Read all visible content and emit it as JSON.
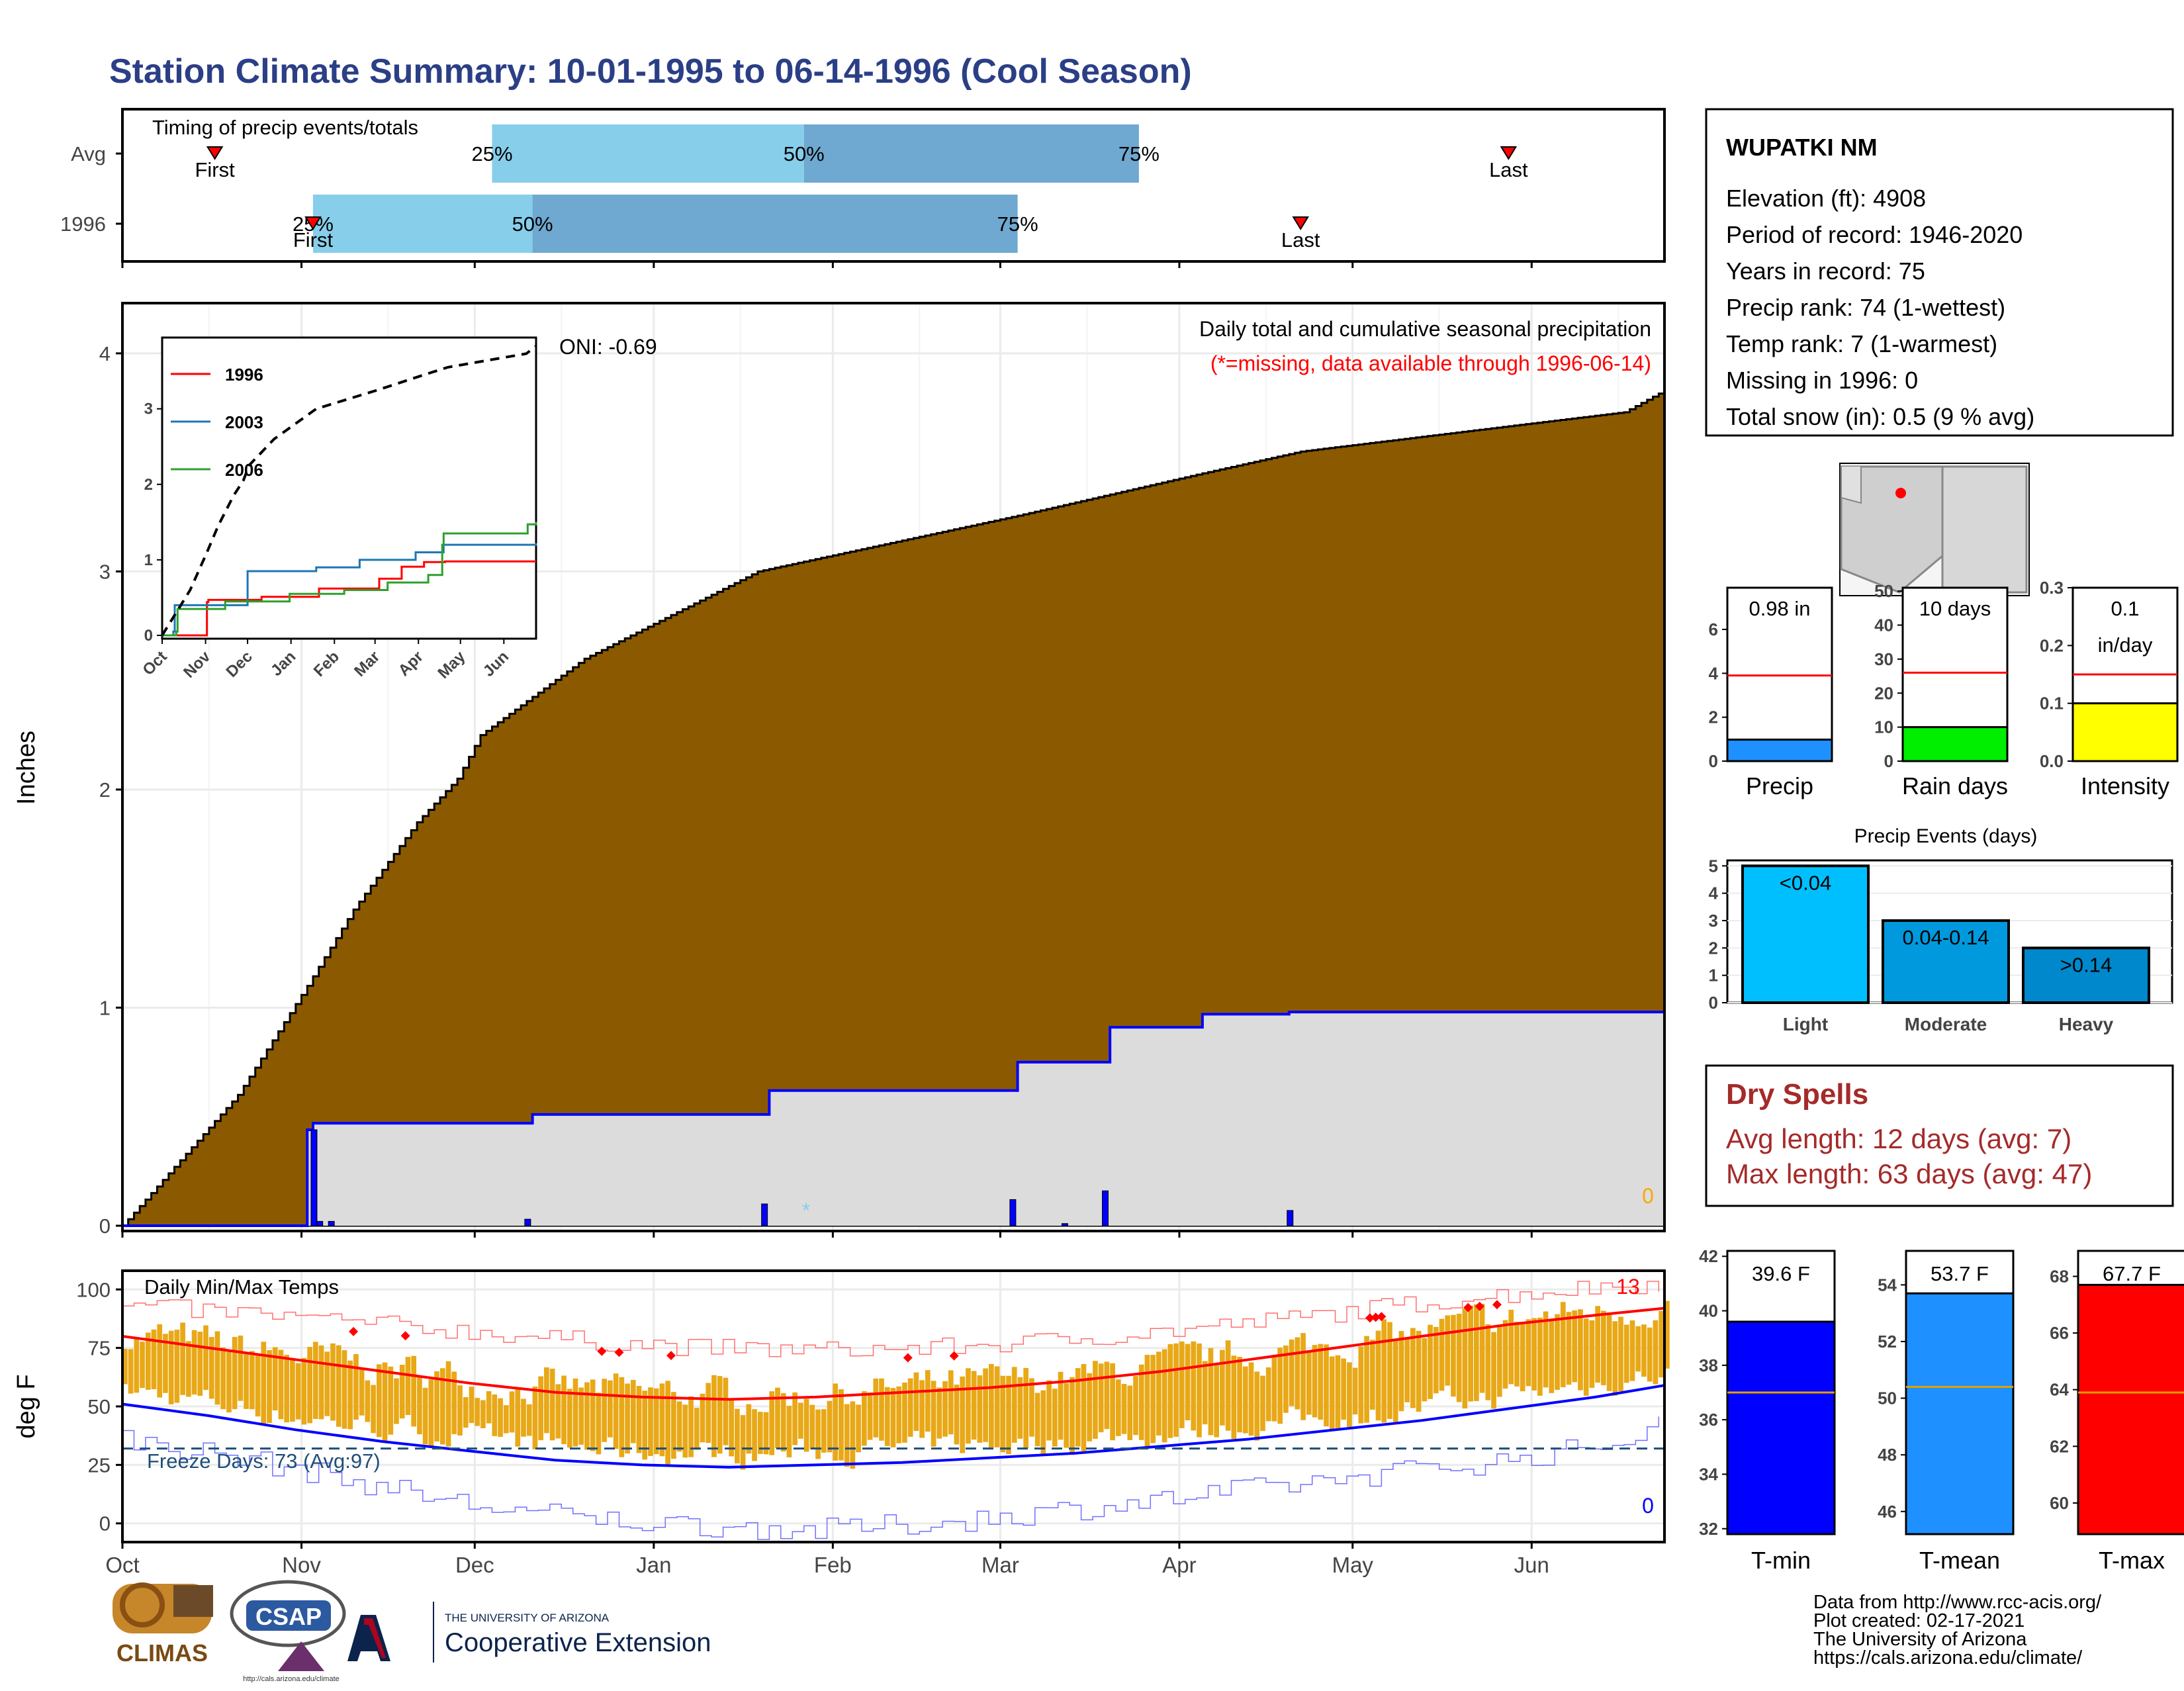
{
  "page": {
    "title": "Station Climate Summary: 10-01-1995 to 06-14-1996 (Cool Season)",
    "footer": [
      "Data from http://www.rcc-acis.org/",
      "Plot created: 02-17-2021",
      "The University of Arizona",
      "https://cals.arizona.edu/climate/"
    ],
    "logos": {
      "climas": "CLIMAS",
      "csap": "CSAP",
      "csap_url": "http://cals.arizona.edu/climate",
      "ua_line1": "THE UNIVERSITY OF ARIZONA",
      "ua_line2": "Cooperative Extension"
    },
    "colors": {
      "title": "#2b3f86",
      "precip_fill": "#8b5a00",
      "normal_fill": "#dcdcdc",
      "normal_line": "#0000ff",
      "bars": "#e8a817",
      "tmax_line": "#ff0000",
      "tmin_line": "#0000ff",
      "freeze": "#1f4e79",
      "dry": "#a52a2a"
    }
  },
  "station": {
    "name": "WUPATKI NM",
    "lines": [
      "Elevation (ft): 4908",
      "Period of record: 1946-2020",
      "Years in record: 75",
      "Precip rank: 74 (1-wettest)",
      "Temp rank: 7 (1-warmest)",
      "Missing in 1996: 0",
      "Total snow (in): 0.5 (9 % avg)"
    ]
  },
  "dry_spells": {
    "title": "Dry Spells",
    "lines": [
      "Avg length: 12 days (avg: 7)",
      "Max length: 63 days (avg: 47)"
    ]
  },
  "chart_data": [
    {
      "type": "table",
      "title": "Timing of precip events/totals",
      "rows": [
        {
          "label": "Avg",
          "first_day": 16,
          "p25_day": 64,
          "p50_day": 118,
          "p75_day": 176,
          "last_day": 240,
          "labels": [
            "First",
            "25%",
            "50%",
            "75%",
            "Last"
          ]
        },
        {
          "label": "1996",
          "first_day": 33,
          "p25_day": 33,
          "p50_day": 71,
          "p75_day": 155,
          "last_day": 204,
          "labels": [
            "First",
            "25%",
            "50%",
            "75%",
            "Last"
          ]
        }
      ],
      "x_domain_days": [
        0,
        267
      ],
      "x_ticks": [
        "Oct",
        "Nov",
        "Dec",
        "Jan",
        "Feb",
        "Mar",
        "Apr",
        "May",
        "Jun"
      ]
    },
    {
      "type": "area",
      "title": "Daily total and cumulative seasonal precipitation",
      "note": "(*=missing, data available through 1996-06-14)",
      "oni": "ONI: -0.69",
      "ylabel": "Inches",
      "ylim": [
        0,
        4.2
      ],
      "yticks": [
        0,
        1,
        2,
        3,
        4
      ],
      "x_ticks": [
        "Oct",
        "Nov",
        "Dec",
        "Jan",
        "Feb",
        "Mar",
        "Apr",
        "May",
        "Jun"
      ],
      "normal_cumulative": {
        "x": [
          0,
          20,
          32,
          40,
          51,
          58,
          62,
          80,
          110,
          154,
          187,
          204,
          235,
          260,
          267
        ],
        "y": [
          0.0,
          0.6,
          1.1,
          1.45,
          1.85,
          2.05,
          2.25,
          2.6,
          3.0,
          3.25,
          3.45,
          3.55,
          3.65,
          3.73,
          3.83
        ]
      },
      "observed_cumulative": {
        "x": [
          0,
          31,
          32,
          33,
          70,
          71,
          111,
          112,
          154,
          155,
          170,
          171,
          186,
          187,
          201,
          202,
          267
        ],
        "y": [
          0,
          0,
          0.44,
          0.47,
          0.47,
          0.51,
          0.51,
          0.62,
          0.62,
          0.75,
          0.75,
          0.91,
          0.91,
          0.97,
          0.97,
          0.98,
          0.98
        ]
      },
      "daily_bars": [
        {
          "day": 33,
          "value": 0.44
        },
        {
          "day": 34,
          "value": 0.02
        },
        {
          "day": 36,
          "value": 0.02
        },
        {
          "day": 70,
          "value": 0.03
        },
        {
          "day": 111,
          "value": 0.1
        },
        {
          "day": 154,
          "value": 0.12
        },
        {
          "day": 163,
          "value": 0.01
        },
        {
          "day": 170,
          "value": 0.16
        },
        {
          "day": 202,
          "value": 0.07
        }
      ],
      "snow_mark": "*",
      "snow_day": 118,
      "snow_label": "0"
    },
    {
      "type": "line",
      "title": "",
      "inset": true,
      "x_ticks": [
        "Oct",
        "Nov",
        "Dec",
        "Jan",
        "Feb",
        "Mar",
        "Apr",
        "May",
        "Jun"
      ],
      "yticks": [
        0,
        1,
        2,
        3
      ],
      "ylim": [
        0,
        3.9
      ],
      "series": [
        {
          "name": "1996",
          "color": "#ff0000",
          "x": [
            0,
            31,
            32,
            33,
            70,
            71,
            111,
            112,
            154,
            155,
            170,
            171,
            186,
            187,
            201,
            202,
            267
          ],
          "y": [
            0,
            0,
            0.44,
            0.47,
            0.47,
            0.51,
            0.51,
            0.62,
            0.62,
            0.75,
            0.75,
            0.91,
            0.91,
            0.97,
            0.97,
            0.98,
            0.98
          ]
        },
        {
          "name": "2003",
          "color": "#1f77b4",
          "x": [
            0,
            8,
            9,
            31,
            60,
            61,
            110,
            140,
            141,
            180,
            181,
            200,
            201,
            267
          ],
          "y": [
            0,
            0.05,
            0.4,
            0.4,
            0.4,
            0.85,
            0.9,
            0.9,
            1.0,
            1.0,
            1.1,
            1.1,
            1.2,
            1.22
          ]
        },
        {
          "name": "2006",
          "color": "#2ca02c",
          "x": [
            0,
            10,
            11,
            30,
            45,
            90,
            91,
            130,
            160,
            161,
            190,
            200,
            201,
            260,
            261,
            267
          ],
          "y": [
            0,
            0.05,
            0.35,
            0.35,
            0.45,
            0.45,
            0.55,
            0.6,
            0.6,
            0.7,
            0.8,
            1.2,
            1.35,
            1.35,
            1.47,
            1.5
          ]
        },
        {
          "name": "",
          "color": "#000000",
          "dashed": true,
          "x": [
            0,
            20,
            32,
            40,
            51,
            58,
            62,
            80,
            110,
            154,
            187,
            204,
            235,
            260,
            267
          ],
          "y": [
            0.0,
            0.6,
            1.1,
            1.45,
            1.85,
            2.05,
            2.25,
            2.6,
            3.0,
            3.25,
            3.45,
            3.55,
            3.65,
            3.73,
            3.83
          ]
        }
      ]
    },
    {
      "type": "bar",
      "title": "Daily Min/Max Temps",
      "ylabel": "deg F",
      "ylim": [
        -8,
        108
      ],
      "yticks": [
        0,
        25,
        50,
        75,
        100
      ],
      "x_ticks": [
        "Oct",
        "Nov",
        "Dec",
        "Jan",
        "Feb",
        "Mar",
        "Apr",
        "May",
        "Jun"
      ],
      "freeze_label": "Freeze Days: 73 (Avg:97)",
      "freeze_line": 32,
      "record_high_count": "13",
      "record_low_count": "0",
      "normal_max": {
        "x": [
          0,
          15,
          30,
          45,
          60,
          75,
          90,
          105,
          120,
          135,
          150,
          165,
          180,
          195,
          210,
          225,
          240,
          255,
          267
        ],
        "y": [
          80,
          75,
          70,
          65,
          60,
          56,
          54,
          53,
          54,
          56,
          58,
          61,
          65,
          70,
          75,
          80,
          85,
          89,
          92
        ]
      },
      "normal_min": {
        "x": [
          0,
          15,
          30,
          45,
          60,
          75,
          90,
          105,
          120,
          135,
          150,
          165,
          180,
          195,
          210,
          225,
          240,
          255,
          267
        ],
        "y": [
          51,
          46,
          40,
          35,
          31,
          27,
          25,
          24,
          25,
          26,
          28,
          30,
          33,
          36,
          40,
          44,
          49,
          54,
          59
        ]
      },
      "record_high": {
        "x": [
          0,
          20,
          40,
          60,
          80,
          100,
          120,
          140,
          160,
          180,
          200,
          220,
          240,
          255,
          267
        ],
        "y": [
          93,
          90,
          86,
          82,
          78,
          75,
          74,
          75,
          78,
          82,
          87,
          93,
          98,
          101,
          103
        ]
      },
      "record_low": {
        "x": [
          0,
          20,
          40,
          60,
          80,
          100,
          120,
          140,
          160,
          180,
          200,
          220,
          240,
          255,
          267
        ],
        "y": [
          36,
          28,
          18,
          8,
          2,
          -1,
          -3,
          0,
          5,
          10,
          16,
          22,
          27,
          33,
          42
        ]
      },
      "daily_ranges": "daily observed highs and lows plotted as bars; new record highs marked with red diamonds"
    },
    {
      "type": "bar",
      "title": "",
      "categories": [
        "Precip",
        "Rain days",
        "Intensity"
      ],
      "panels": [
        {
          "category": "Precip",
          "value": 0.98,
          "label": "0.98 in",
          "avg": 3.9,
          "ylim": [
            0,
            7.9
          ],
          "yticks": [
            0,
            2,
            4,
            6
          ],
          "color": "#1e90ff"
        },
        {
          "category": "Rain days",
          "value": 10,
          "label": "10 days",
          "avg": 26,
          "ylim": [
            0,
            51
          ],
          "yticks": [
            0,
            10,
            20,
            30,
            40,
            50
          ],
          "color": "#00ee00"
        },
        {
          "category": "Intensity",
          "value": 0.1,
          "label1": "0.1",
          "label2": "in/day",
          "avg": 0.15,
          "ylim": [
            0,
            0.3
          ],
          "yticks": [
            0.0,
            0.1,
            0.2,
            0.3
          ],
          "color": "#ffff00"
        }
      ]
    },
    {
      "type": "bar",
      "title": "Precip Events (days)",
      "categories": [
        "Light",
        "Moderate",
        "Heavy"
      ],
      "bar_labels": [
        "<0.04",
        "0.04-0.14",
        ">0.14"
      ],
      "values": [
        5,
        3,
        2
      ],
      "ylim": [
        0,
        5.2
      ],
      "yticks": [
        0,
        1,
        2,
        3,
        4,
        5
      ],
      "colors": [
        "#00bfff",
        "#0099dd",
        "#0088cc"
      ]
    },
    {
      "type": "bar",
      "title": "",
      "categories": [
        "T-min",
        "T-mean",
        "T-max"
      ],
      "panels": [
        {
          "category": "T-min",
          "value": 39.6,
          "label": "39.6 F",
          "avg": 37.0,
          "ylim": [
            31.8,
            42.2
          ],
          "yticks": [
            32,
            34,
            36,
            38,
            40,
            42
          ],
          "color": "#0000ff"
        },
        {
          "category": "T-mean",
          "value": 53.7,
          "label": "53.7 F",
          "avg": 50.4,
          "ylim": [
            45.2,
            55.2
          ],
          "yticks": [
            46,
            48,
            50,
            52,
            54
          ],
          "color": "#1e90ff"
        },
        {
          "category": "T-max",
          "value": 67.7,
          "label": "67.7 F",
          "avg": 63.9,
          "ylim": [
            58.9,
            68.9
          ],
          "yticks": [
            60,
            62,
            64,
            66,
            68
          ],
          "color": "#ff0000"
        }
      ]
    }
  ]
}
